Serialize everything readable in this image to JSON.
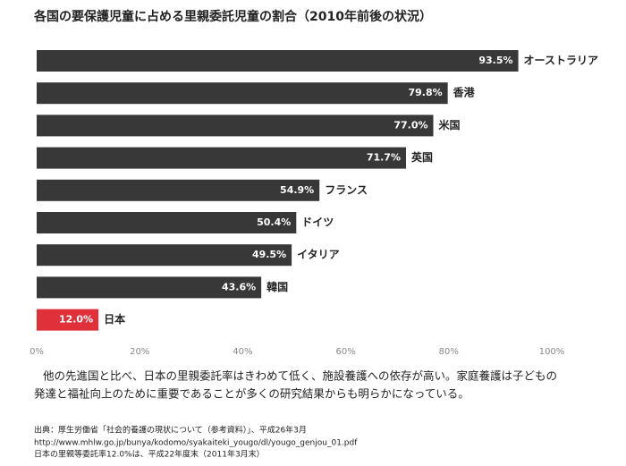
{
  "chart_data": {
    "type": "bar",
    "orientation": "horizontal",
    "title": "各国の要保護児童に占める里親委託児童の割合（2010年前後の状況）",
    "categories": [
      "オーストラリア",
      "香港",
      "米国",
      "英国",
      "フランス",
      "ドイツ",
      "イタリア",
      "韓国",
      "日本"
    ],
    "values": [
      93.5,
      79.8,
      77.0,
      71.7,
      54.9,
      50.4,
      49.5,
      43.6,
      12.0
    ],
    "value_labels": [
      "93.5%",
      "79.8%",
      "77.0%",
      "71.7%",
      "54.9%",
      "50.4%",
      "49.5%",
      "43.6%",
      "12.0%"
    ],
    "colors": [
      "#383838",
      "#383838",
      "#383838",
      "#383838",
      "#383838",
      "#383838",
      "#383838",
      "#383838",
      "#e0303a"
    ],
    "xlim": [
      0,
      100
    ],
    "xticks": [
      {
        "value": 0,
        "label": "0%"
      },
      {
        "value": 20,
        "label": "20%"
      },
      {
        "value": 40,
        "label": "40%"
      },
      {
        "value": 60,
        "label": "60%"
      },
      {
        "value": 80,
        "label": "80%"
      },
      {
        "value": 100,
        "label": "100%"
      }
    ],
    "grid": false,
    "note": [
      "他の先進国と比べ、日本の里親委託率はきわめて低く、施設養護への依存が高い。家庭養護は子どもの",
      "発達と福祉向上のために重要であることが多くの研究結果からも明らかになっている。"
    ],
    "source": [
      "出典：厚生労働省「社会的養護の現状について（参考資料）」、平成26年3月",
      "http://www.mhlw.go.jp/bunya/kodomo/syakaiteki_yougo/dl/yougo_genjou_01.pdf",
      "日本の里親等委託率12.0%は、平成22年度末（2011年3月末）"
    ]
  }
}
